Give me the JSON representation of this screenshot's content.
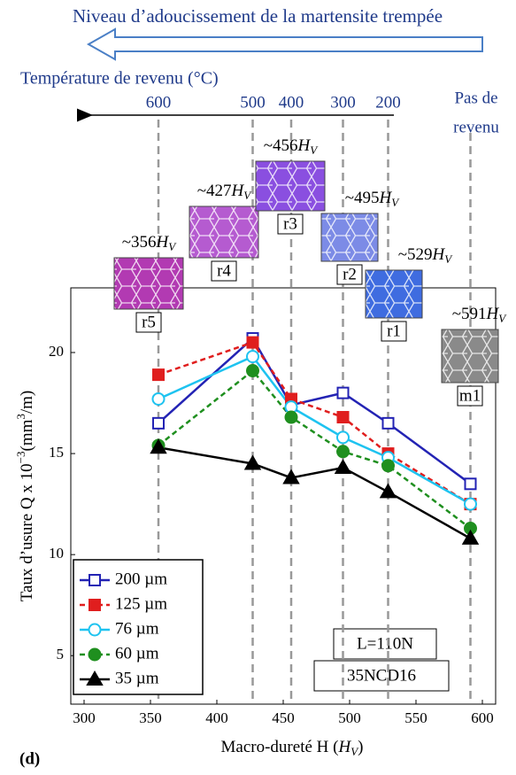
{
  "chart_data": {
    "type": "line",
    "title": "Niveau d’adoucissement de la martensite trempée",
    "top_axis_label": "Température de revenu (°C)",
    "top_ticks": [
      {
        "value": 356,
        "label": "600"
      },
      {
        "value": 427,
        "label": "500"
      },
      {
        "value": 456,
        "label": "400"
      },
      {
        "value": 495,
        "label": "300"
      },
      {
        "value": 529,
        "label": "200"
      }
    ],
    "right_label": [
      "Pas de",
      "revenu"
    ],
    "xlabel": [
      "Macro-dureté H (",
      "H",
      "V",
      ")"
    ],
    "ylabel": [
      "Taux d’usure Q x 10",
      "−3",
      "(mm",
      "3",
      "/m)"
    ],
    "panel_label": "(d)",
    "notes": [
      "L=110N",
      "35NCD16"
    ],
    "hardness_unit": [
      "H",
      "V"
    ],
    "micrographs": [
      {
        "label": "r5",
        "hardness": "~356"
      },
      {
        "label": "r4",
        "hardness": "~427"
      },
      {
        "label": "r3",
        "hardness": "~456"
      },
      {
        "label": "r2",
        "hardness": "~495"
      },
      {
        "label": "r1",
        "hardness": "~529"
      },
      {
        "label": "m1",
        "hardness": "~591"
      }
    ],
    "x": [
      356,
      427,
      456,
      495,
      529,
      591
    ],
    "series": [
      {
        "name": "200 µm",
        "color": "#2323b4",
        "marker": "square-open",
        "dashed": false,
        "values": [
          16.5,
          20.7,
          17.4,
          18.0,
          16.5,
          13.5
        ]
      },
      {
        "name": "125 µm",
        "color": "#e01e1e",
        "marker": "square",
        "dashed": true,
        "values": [
          18.9,
          20.5,
          17.7,
          16.8,
          15.0,
          12.5
        ]
      },
      {
        "name": "76 µm",
        "color": "#1ec3f0",
        "marker": "circle-open",
        "dashed": false,
        "values": [
          17.7,
          19.8,
          17.3,
          15.8,
          14.8,
          12.5
        ]
      },
      {
        "name": "60 µm",
        "color": "#1f8f1f",
        "marker": "circle",
        "dashed": true,
        "values": [
          15.4,
          19.1,
          16.8,
          15.1,
          14.4,
          11.3
        ]
      },
      {
        "name": "35 µm",
        "color": "#000000",
        "marker": "triangle",
        "dashed": false,
        "values": [
          15.3,
          14.5,
          13.8,
          14.3,
          13.1,
          10.8
        ]
      }
    ],
    "xlim": [
      290,
      610
    ],
    "xticks": [
      300,
      350,
      400,
      450,
      500,
      550,
      600
    ],
    "ylim": [
      2.6,
      23.2
    ],
    "yticks": [
      5,
      10,
      15,
      20
    ]
  }
}
